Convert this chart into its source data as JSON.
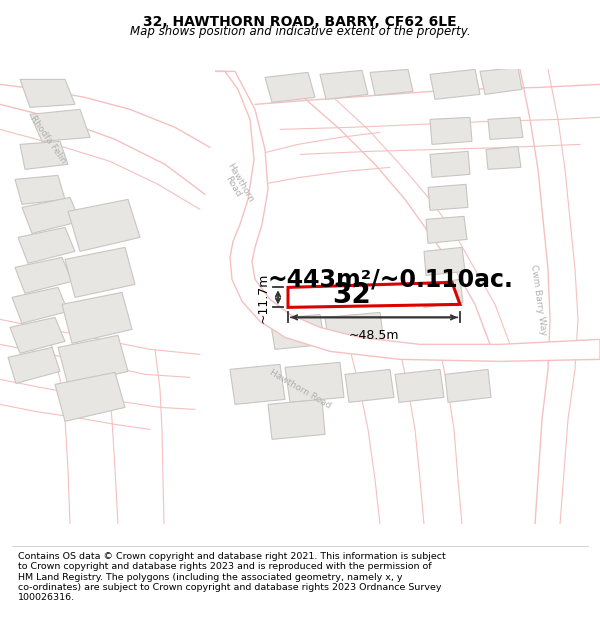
{
  "title": "32, HAWTHORN ROAD, BARRY, CF62 6LE",
  "subtitle": "Map shows position and indicative extent of the property.",
  "footer": "Contains OS data © Crown copyright and database right 2021. This information is subject\nto Crown copyright and database rights 2023 and is reproduced with the permission of\nHM Land Registry. The polygons (including the associated geometry, namely x, y\nco-ordinates) are subject to Crown copyright and database rights 2023 Ordnance Survey\n100026316.",
  "area_label": "~443m²/~0.110ac.",
  "number_label": "32",
  "dim_width": "~48.5m",
  "dim_height": "~11.7m",
  "map_bg": "#f7f6f4",
  "building_fill": "#e8e6e2",
  "building_stroke": "#c8c6c2",
  "property_color": "#dd0000",
  "road_line_color": "#f5c0c0",
  "road_fill": "#ffffff",
  "road_label_color": "#aaaaaa",
  "dim_color": "#333333",
  "title_fontsize": 10,
  "subtitle_fontsize": 8.5,
  "footer_fontsize": 6.8,
  "area_label_fontsize": 17,
  "number_fontsize": 20,
  "dim_fontsize": 9
}
